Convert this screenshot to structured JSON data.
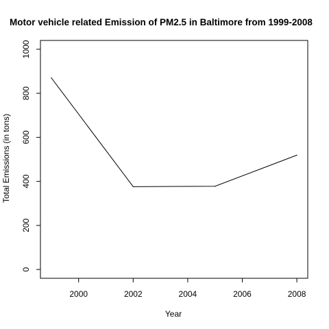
{
  "chart_data": {
    "type": "line",
    "title": "Motor vehicle related Emission of PM2.5 in Baltimore from 1999-2008",
    "xlabel": "Year",
    "ylabel": "Total Emissions (in tons)",
    "x": [
      1999,
      2002,
      2005,
      2008
    ],
    "series": [
      {
        "values": [
          870,
          376,
          378,
          519
        ]
      }
    ],
    "xlim": [
      1998.6,
      2008.4
    ],
    "ylim": [
      -40,
      1040
    ],
    "xticks": [
      "2000",
      "2002",
      "2004",
      "2006",
      "2008"
    ],
    "yticks": [
      "0",
      "200",
      "400",
      "600",
      "800",
      "1000"
    ],
    "grid": false,
    "line_color": "#000000"
  }
}
